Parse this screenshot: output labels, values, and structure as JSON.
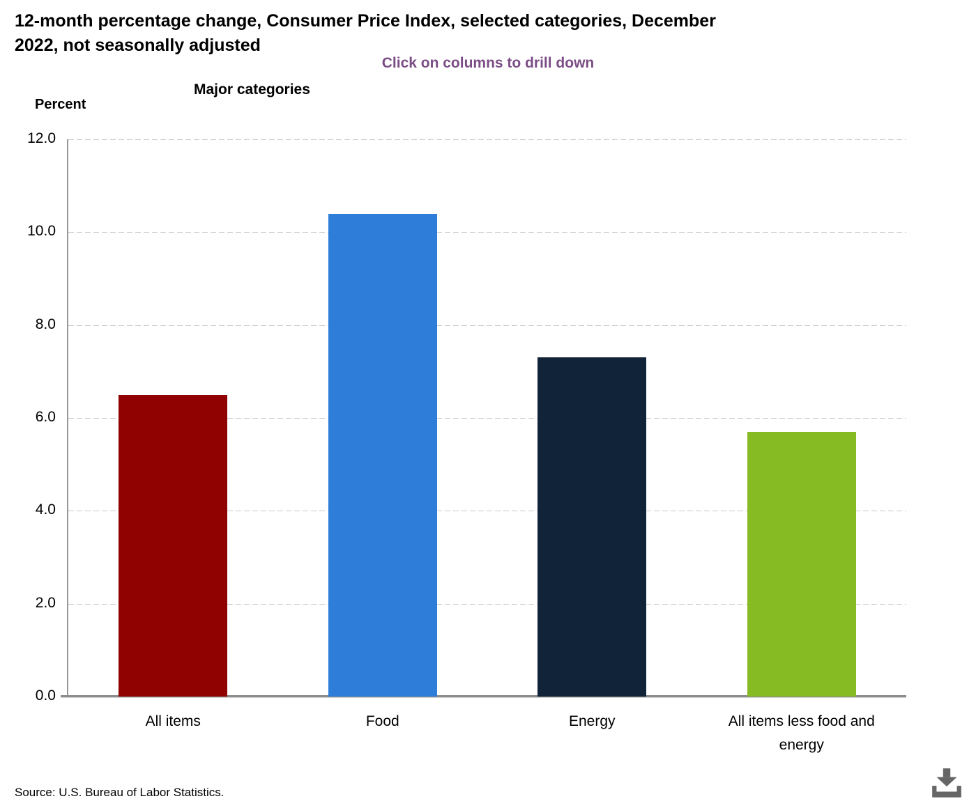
{
  "header": {
    "title_line1": "12-month percentage change, Consumer Price Index, selected categories, December",
    "title_line2": "2022, not seasonally adjusted",
    "drilldown_hint": "Click on columns to drill down",
    "group_label": "Major categories",
    "y_axis_title": "Percent"
  },
  "chart_data": {
    "type": "bar",
    "title": "12-month percentage change, Consumer Price Index, selected categories, December 2022, not seasonally adjusted",
    "subtitle": "Click on columns to drill down",
    "xlabel": "Major categories",
    "ylabel": "Percent",
    "categories": [
      "All items",
      "Food",
      "Energy",
      "All items less food and energy"
    ],
    "values": [
      6.5,
      10.4,
      7.3,
      5.7
    ],
    "bar_colors": [
      "#900101",
      "#2e7dd8",
      "#112338",
      "#87bb23"
    ],
    "ylim": [
      0,
      12
    ],
    "ytick_step": 2,
    "ytick_labels": [
      "0.0",
      "2.0",
      "4.0",
      "6.0",
      "8.0",
      "10.0",
      "12.0"
    ],
    "grid": "horizontal-dashed",
    "legend": "none"
  },
  "footer": {
    "source": "Source: U.S. Bureau of Labor Statistics."
  },
  "icons": {
    "download": "download-icon"
  },
  "colors": {
    "hint_text": "#7b4d85",
    "grid_line": "#c8c8c8",
    "axis_line": "#969696",
    "baseline": "#8c8c8c",
    "download_icon": "#666666",
    "text": "#000000",
    "background": "#ffffff"
  }
}
